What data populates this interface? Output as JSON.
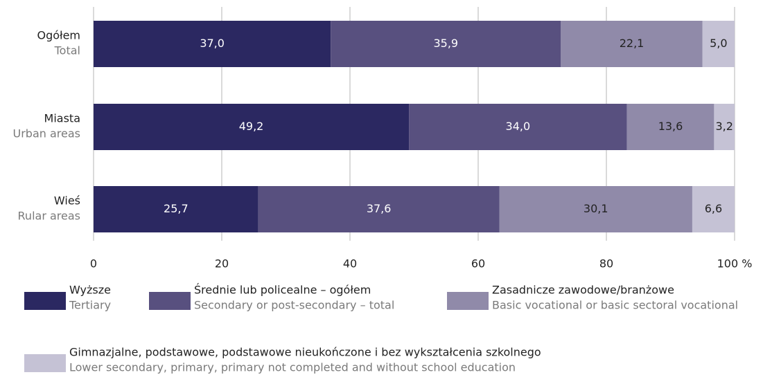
{
  "chart_data": {
    "type": "stacked_barh",
    "categories": [
      "Ogółem",
      "Miasta",
      "Wieś"
    ],
    "categories_en": [
      "Total",
      "Urban areas",
      "Rular areas"
    ],
    "series": [
      {
        "name": "Wyższe",
        "name_en": "Tertiary",
        "color": "#2b2861",
        "label_color": "#ffffff",
        "values": [
          37.0,
          49.2,
          25.7
        ],
        "value_labels": [
          "37,0",
          "49,2",
          "25,7"
        ]
      },
      {
        "name": "Średnie lub policealne – ogółem",
        "name_en": "Secondary or post-secondary – total",
        "color": "#58507f",
        "label_color": "#ffffff",
        "values": [
          35.9,
          34.0,
          37.6
        ],
        "value_labels": [
          "35,9",
          "34,0",
          "37,6"
        ]
      },
      {
        "name": "Zasadnicze zawodowe/branżowe",
        "name_en": "Basic vocational or basic sectoral vocational",
        "color": "#908aa9",
        "label_color": "#222222",
        "values": [
          22.1,
          13.6,
          30.1
        ],
        "value_labels": [
          "22,1",
          "13,6",
          "30,1"
        ]
      },
      {
        "name": "Gimnazjalne, podstawowe, podstawowe nieukończone i bez wykształcenia szkolnego",
        "name_en": "Lower secondary, primary, primary not completed and without school education",
        "color": "#c5c2d5",
        "label_color": "#222222",
        "values": [
          5.0,
          3.2,
          6.6
        ],
        "value_labels": [
          "5,0",
          "3,2",
          "6,6"
        ]
      }
    ],
    "xlim": [
      0,
      100
    ],
    "xticks": [
      0,
      20,
      40,
      60,
      80,
      {
        "value": 100,
        "label": "100 %"
      }
    ],
    "grid": true
  }
}
